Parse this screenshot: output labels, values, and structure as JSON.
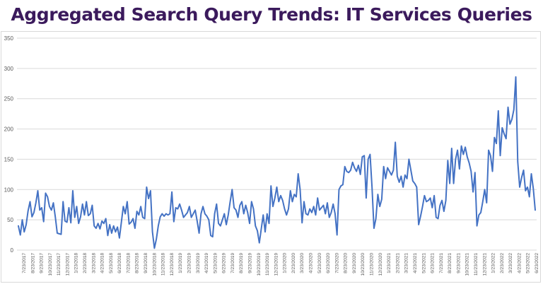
{
  "page": {
    "title": "Aggregated Search Query Trends: IT Services Queries"
  },
  "colors": {
    "title": "#3b1a5c",
    "line": "#4472c4",
    "grid": "#d9d9d9",
    "tick_text": "#595959"
  },
  "chart_data": {
    "type": "line",
    "title": "Aggregated Search Query Trends: IT Services Queries",
    "xlabel": "",
    "ylabel": "",
    "ylim": [
      0,
      350
    ],
    "yticks": [
      0,
      50,
      100,
      150,
      200,
      250,
      300,
      350
    ],
    "grid": "horizontal",
    "legend": "none",
    "x_ticks": [
      "7/23/2017",
      "8/23/2017",
      "9/23/2017",
      "10/23/2017",
      "11/23/2017",
      "12/23/2017",
      "1/23/2018",
      "2/23/2018",
      "3/23/2018",
      "4/23/2018",
      "5/23/2018",
      "6/23/2018",
      "7/23/2018",
      "8/23/2018",
      "9/23/2018",
      "10/23/2018",
      "11/23/2018",
      "12/23/2018",
      "1/23/2019",
      "2/23/2019",
      "3/23/2019",
      "4/23/2019",
      "5/23/2019",
      "6/23/2019",
      "7/23/2019",
      "8/23/2019",
      "9/23/2019",
      "10/23/2019",
      "11/23/2019",
      "12/23/2019",
      "1/23/2020",
      "2/23/2020",
      "3/23/2020",
      "4/23/2020",
      "5/23/2020",
      "6/23/2020",
      "7/23/2020",
      "8/23/2020",
      "9/23/2020",
      "10/23/2020",
      "11/23/2020",
      "12/23/2020",
      "1/23/2021",
      "2/23/2021",
      "3/23/2021",
      "4/23/2021",
      "5/23/2021",
      "6/23/2021",
      "7/23/2021",
      "8/23/2021",
      "9/23/2021",
      "10/23/2021",
      "11/23/2021",
      "12/23/2021",
      "1/23/2022",
      "2/23/2022",
      "3/23/2022",
      "4/23/2022",
      "5/23/2022",
      "6/23/2022"
    ],
    "series": [
      {
        "values": [
          40,
          25,
          50,
          30,
          42,
          65,
          80,
          55,
          62,
          78,
          98,
          66,
          70,
          47,
          94,
          88,
          72,
          66,
          78,
          55,
          28,
          27,
          26,
          80,
          48,
          46,
          70,
          45,
          98,
          54,
          72,
          44,
          55,
          76,
          58,
          80,
          57,
          60,
          74,
          40,
          36,
          44,
          35,
          48,
          44,
          52,
          24,
          42,
          28,
          40,
          30,
          38,
          20,
          46,
          72,
          60,
          80,
          43,
          46,
          52,
          36,
          64,
          58,
          72,
          54,
          52,
          104,
          85,
          98,
          30,
          3,
          18,
          40,
          55,
          60,
          56,
          60,
          58,
          60,
          96,
          47,
          70,
          68,
          76,
          66,
          54,
          58,
          62,
          72,
          54,
          60,
          66,
          48,
          28,
          60,
          72,
          60,
          56,
          50,
          24,
          22,
          60,
          76,
          44,
          40,
          50,
          60,
          42,
          58,
          80,
          100,
          70,
          66,
          54,
          74,
          80,
          60,
          74,
          62,
          44,
          80,
          68,
          40,
          32,
          12,
          35,
          58,
          30,
          60,
          44,
          106,
          72,
          86,
          104,
          80,
          90,
          82,
          68,
          58,
          68,
          98,
          80,
          92,
          88,
          126,
          100,
          45,
          80,
          60,
          58,
          68,
          62,
          72,
          58,
          86,
          66,
          70,
          74,
          60,
          78,
          54,
          62,
          76,
          60,
          25,
          100,
          106,
          108,
          138,
          130,
          128,
          132,
          145,
          136,
          130,
          140,
          125,
          154,
          156,
          86,
          150,
          158,
          104,
          36,
          52,
          92,
          72,
          84,
          138,
          118,
          136,
          130,
          124,
          132,
          178,
          122,
          112,
          122,
          104,
          124,
          118,
          150,
          132,
          114,
          110,
          104,
          42,
          56,
          72,
          90,
          80,
          82,
          86,
          70,
          90,
          54,
          52,
          74,
          82,
          64,
          82,
          148,
          110,
          168,
          110,
          150,
          165,
          134,
          172,
          158,
          170,
          154,
          144,
          130,
          96,
          128,
          40,
          58,
          62,
          80,
          100,
          78,
          165,
          156,
          130,
          186,
          176,
          230,
          156,
          202,
          192,
          184,
          236,
          208,
          216,
          232,
          286,
          146,
          104,
          120,
          132,
          98,
          104,
          88,
          126,
          102,
          66
        ]
      }
    ]
  }
}
